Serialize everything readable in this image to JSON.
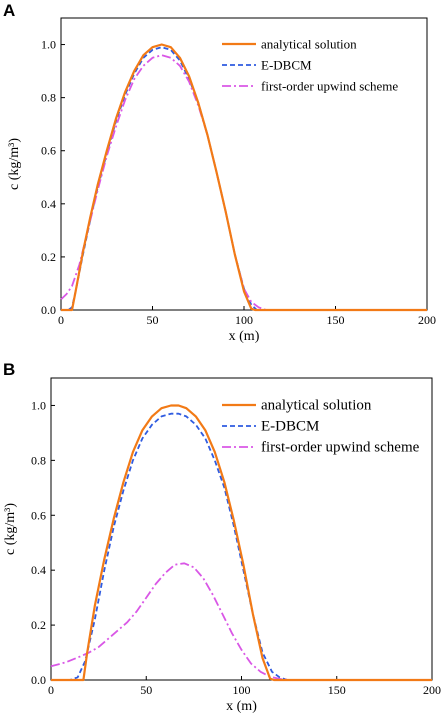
{
  "colors": {
    "analytical": "#F27A16",
    "edbcm": "#2F5BE0",
    "upwind": "#D957E6",
    "axis": "#000000"
  },
  "chart_data": [
    {
      "panel": "A",
      "type": "line",
      "xlabel": "x (m)",
      "ylabel": "c (kg/m³)",
      "xlim": [
        0,
        200
      ],
      "ylim": [
        0,
        1.1
      ],
      "xticks": [
        0,
        50,
        100,
        150,
        200
      ],
      "yticks": [
        0.0,
        0.2,
        0.4,
        0.6,
        0.8,
        1.0
      ],
      "grid": false,
      "legend": "top-right",
      "series": [
        {
          "name": "analytical solution",
          "style": "solid",
          "color": "#F27A16",
          "x": [
            0,
            4,
            6,
            8,
            12,
            16,
            20,
            25,
            30,
            35,
            40,
            45,
            50,
            55,
            60,
            65,
            70,
            75,
            80,
            85,
            90,
            95,
            100,
            104,
            106,
            110,
            150,
            200
          ],
          "y": [
            0,
            0,
            0,
            0.07,
            0.22,
            0.35,
            0.47,
            0.6,
            0.72,
            0.82,
            0.9,
            0.96,
            0.99,
            1.0,
            0.99,
            0.95,
            0.88,
            0.78,
            0.66,
            0.52,
            0.37,
            0.21,
            0.07,
            0.005,
            0,
            0,
            0,
            0
          ]
        },
        {
          "name": "E-DBCM",
          "style": "dashed",
          "color": "#2F5BE0",
          "x": [
            0,
            4,
            6,
            8,
            12,
            16,
            20,
            25,
            30,
            35,
            40,
            45,
            50,
            55,
            60,
            65,
            70,
            75,
            80,
            85,
            90,
            95,
            100,
            104,
            107,
            110,
            150,
            200
          ],
          "y": [
            0,
            0,
            0.01,
            0.07,
            0.21,
            0.34,
            0.46,
            0.59,
            0.71,
            0.81,
            0.89,
            0.95,
            0.98,
            0.99,
            0.98,
            0.94,
            0.87,
            0.78,
            0.66,
            0.52,
            0.37,
            0.21,
            0.08,
            0.02,
            0,
            0,
            0,
            0
          ]
        },
        {
          "name": "first-order upwind scheme",
          "style": "dashdot",
          "color": "#D957E6",
          "x": [
            0,
            3,
            6,
            10,
            15,
            20,
            25,
            30,
            35,
            40,
            45,
            50,
            55,
            60,
            65,
            70,
            75,
            80,
            85,
            90,
            95,
            100,
            104,
            108,
            112,
            150,
            200
          ],
          "y": [
            0.04,
            0.06,
            0.09,
            0.17,
            0.31,
            0.45,
            0.58,
            0.69,
            0.79,
            0.87,
            0.92,
            0.95,
            0.96,
            0.95,
            0.92,
            0.86,
            0.77,
            0.66,
            0.52,
            0.37,
            0.21,
            0.08,
            0.03,
            0.01,
            0,
            0,
            0
          ]
        }
      ]
    },
    {
      "panel": "B",
      "type": "line",
      "xlabel": "x (m)",
      "ylabel": "c (kg/m³)",
      "xlim": [
        0,
        200
      ],
      "ylim": [
        0,
        1.1
      ],
      "xticks": [
        0,
        50,
        100,
        150,
        200
      ],
      "yticks": [
        0.0,
        0.2,
        0.4,
        0.6,
        0.8,
        1.0
      ],
      "grid": false,
      "legend": "top-right",
      "series": [
        {
          "name": "analytical solution",
          "style": "solid",
          "color": "#F27A16",
          "x": [
            0,
            15,
            17,
            19,
            23,
            28,
            33,
            38,
            43,
            48,
            53,
            58,
            63,
            67,
            71,
            76,
            81,
            86,
            91,
            96,
            101,
            106,
            111,
            115,
            117,
            125,
            150,
            200
          ],
          "y": [
            0,
            0,
            0,
            0.1,
            0.27,
            0.44,
            0.59,
            0.72,
            0.83,
            0.91,
            0.96,
            0.99,
            1.0,
            1.0,
            0.99,
            0.96,
            0.91,
            0.83,
            0.72,
            0.58,
            0.42,
            0.24,
            0.08,
            0.005,
            0,
            0,
            0,
            0
          ]
        },
        {
          "name": "E-DBCM",
          "style": "dashed",
          "color": "#2F5BE0",
          "x": [
            0,
            10,
            14,
            18,
            23,
            28,
            33,
            38,
            43,
            48,
            53,
            58,
            63,
            67,
            71,
            76,
            81,
            86,
            91,
            96,
            101,
            106,
            111,
            116,
            120,
            124,
            150,
            200
          ],
          "y": [
            0,
            0,
            0.01,
            0.07,
            0.22,
            0.4,
            0.56,
            0.69,
            0.8,
            0.88,
            0.93,
            0.96,
            0.97,
            0.97,
            0.96,
            0.93,
            0.88,
            0.8,
            0.7,
            0.56,
            0.4,
            0.24,
            0.1,
            0.03,
            0.01,
            0,
            0,
            0
          ]
        },
        {
          "name": "first-order upwind scheme",
          "style": "dashdot",
          "color": "#D957E6",
          "x": [
            0,
            8,
            15,
            20,
            25,
            30,
            35,
            40,
            45,
            50,
            55,
            60,
            65,
            70,
            75,
            80,
            85,
            90,
            95,
            100,
            105,
            110,
            115,
            120,
            125,
            150,
            200
          ],
          "y": [
            0.05,
            0.065,
            0.085,
            0.1,
            0.12,
            0.15,
            0.18,
            0.21,
            0.25,
            0.3,
            0.35,
            0.39,
            0.42,
            0.425,
            0.41,
            0.37,
            0.31,
            0.24,
            0.17,
            0.11,
            0.06,
            0.03,
            0.012,
            0.004,
            0,
            0,
            0
          ]
        }
      ]
    }
  ]
}
